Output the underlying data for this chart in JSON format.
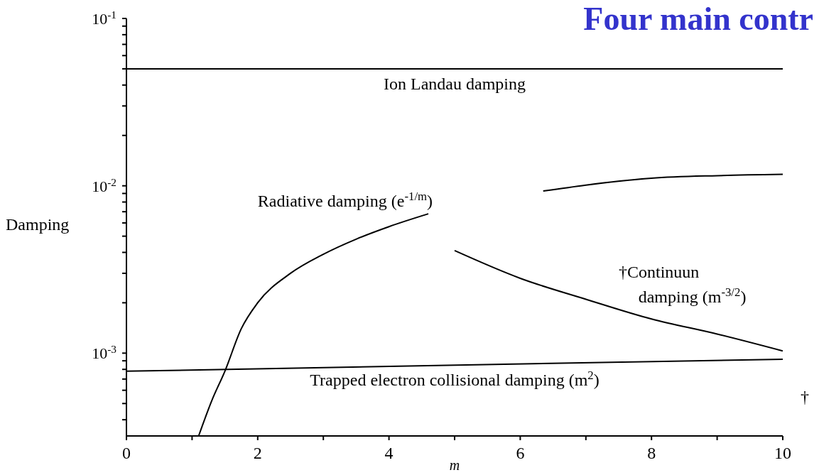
{
  "chart_data": {
    "type": "line",
    "title": "Four main contr",
    "xlabel": "m",
    "ylabel": "Damping",
    "xlim": [
      0,
      10
    ],
    "xticks": [
      0,
      {
        "value": 1,
        "label": null
      },
      2,
      {
        "value": 3,
        "label": null
      },
      4,
      {
        "value": 5,
        "label": null
      },
      6,
      {
        "value": 7,
        "label": null
      },
      8,
      {
        "value": 9,
        "label": null
      },
      10
    ],
    "ylim": [
      0.00032,
      0.1
    ],
    "log": true,
    "yticks": [
      {
        "value": 0.0004,
        "label": null
      },
      {
        "value": 0.0005,
        "label": null
      },
      {
        "value": 0.0006,
        "label": null
      },
      {
        "value": 0.0007,
        "label": null
      },
      {
        "value": 0.0008,
        "label": null
      },
      {
        "value": 0.0009,
        "label": null
      },
      {
        "value": 0.001,
        "label": "10$^{-3}$"
      },
      {
        "value": 0.002,
        "label": null
      },
      {
        "value": 0.003,
        "label": null
      },
      {
        "value": 0.004,
        "label": null
      },
      {
        "value": 0.005,
        "label": null
      },
      {
        "value": 0.006,
        "label": null
      },
      {
        "value": 0.007,
        "label": null
      },
      {
        "value": 0.008,
        "label": null
      },
      {
        "value": 0.009,
        "label": null
      },
      {
        "value": 0.01,
        "label": "10$^{-2}$"
      },
      {
        "value": 0.02,
        "label": null
      },
      {
        "value": 0.03,
        "label": null
      },
      {
        "value": 0.04,
        "label": null
      },
      {
        "value": 0.05,
        "label": null
      },
      {
        "value": 0.06,
        "label": null
      },
      {
        "value": 0.07,
        "label": null
      },
      {
        "value": 0.08,
        "label": null
      },
      {
        "value": 0.09,
        "label": null
      },
      {
        "value": 0.1,
        "label": "10$^{-1}$"
      }
    ],
    "grid": false,
    "marker": "none",
    "line_style": "solid",
    "series": [
      {
        "color": "#000000",
        "x": [
          0,
          10
        ],
        "values": [
          0.05,
          0.05
        ]
      },
      {
        "color": "#000000",
        "x": [
          1.1,
          1.3,
          1.5,
          1.75,
          2,
          2.5,
          3,
          3.5,
          4,
          4.6,
          5.5,
          6.35,
          7,
          8,
          9,
          10
        ],
        "values": [
          0.00032,
          0.00052,
          0.00078,
          0.0014,
          0.002,
          0.003,
          0.0039,
          0.0048,
          0.0057,
          0.0068,
          null,
          0.0093,
          0.0101,
          0.0111,
          0.0115,
          0.0117
        ]
      },
      {
        "color": "#000000",
        "x": [
          5,
          6,
          7,
          8,
          9,
          10
        ],
        "values": [
          0.0041,
          0.0028,
          0.0021,
          0.0016,
          0.0013,
          0.00103
        ]
      },
      {
        "color": "#000000",
        "x": [
          0,
          10
        ],
        "values": [
          0.00078,
          0.00092
        ]
      }
    ],
    "annotations": [
      "Ion Landau damping",
      "Radiative damping (e$^{-1/m}$)",
      "†Continuun",
      "damping (m$^{-3/2}$)",
      "Trapped electron collisional damping (m$^{2}$)",
      "†"
    ]
  }
}
